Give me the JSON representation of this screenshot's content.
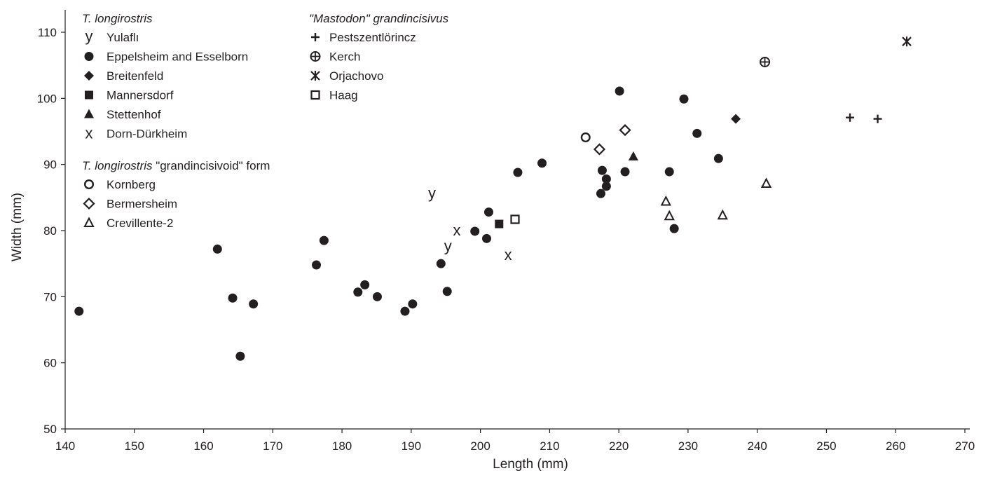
{
  "chart_data": {
    "type": "scatter",
    "title": "",
    "xlabel": "Length (mm)",
    "ylabel": "Width (mm)",
    "xlim": [
      140,
      270
    ],
    "ylim": [
      50,
      110
    ],
    "x_ticks": [
      "140",
      "150",
      "160",
      "170",
      "180",
      "190",
      "200",
      "210",
      "220",
      "230",
      "240",
      "250",
      "260",
      "270"
    ],
    "y_ticks": [
      "50",
      "60",
      "70",
      "80",
      "90",
      "100",
      "110"
    ],
    "grid": false,
    "legend_placement": "top-left",
    "legend_groups": [
      {
        "heading_italic": "T. longirostris",
        "heading_rest": "",
        "entries": [
          {
            "label": "Yulaflı",
            "marker": "y-letter"
          },
          {
            "label": "Eppelsheim and Esselborn",
            "marker": "filled-circle"
          },
          {
            "label": "Breitenfeld",
            "marker": "filled-diamond"
          },
          {
            "label": "Mannersdorf",
            "marker": "filled-square"
          },
          {
            "label": "Stettenhof",
            "marker": "filled-triangle"
          },
          {
            "label": "Dorn-Dürkheim",
            "marker": "x-letter"
          }
        ]
      },
      {
        "heading_italic": "T. longirostris",
        "heading_rest": " \"grandincisivoid\" form",
        "entries": [
          {
            "label": "Kornberg",
            "marker": "open-circle"
          },
          {
            "label": "Bermersheim",
            "marker": "open-diamond"
          },
          {
            "label": "Crevillente-2",
            "marker": "open-triangle"
          }
        ]
      },
      {
        "heading_italic": "\"Mastodon\" grandincisivus",
        "heading_rest": "",
        "entries": [
          {
            "label": "Pestszentlörincz",
            "marker": "plus"
          },
          {
            "label": "Kerch",
            "marker": "circle-plus"
          },
          {
            "label": "Orjachovo",
            "marker": "asterisk"
          },
          {
            "label": "Haag",
            "marker": "open-square"
          }
        ]
      }
    ],
    "series": [
      {
        "name": "Yulaflı",
        "marker": "y-letter",
        "points": [
          [
            193.0,
            85.5
          ],
          [
            195.3,
            77.5
          ]
        ]
      },
      {
        "name": "Eppelsheim and Esselborn",
        "marker": "filled-circle",
        "points": [
          [
            142.0,
            67.8
          ],
          [
            162.0,
            77.2
          ],
          [
            164.2,
            69.8
          ],
          [
            165.3,
            61.0
          ],
          [
            167.2,
            68.9
          ],
          [
            176.3,
            74.8
          ],
          [
            177.4,
            78.5
          ],
          [
            182.3,
            70.7
          ],
          [
            183.3,
            71.8
          ],
          [
            185.1,
            70.0
          ],
          [
            189.1,
            67.8
          ],
          [
            190.2,
            68.9
          ],
          [
            194.3,
            75.0
          ],
          [
            195.2,
            70.8
          ],
          [
            199.2,
            79.9
          ],
          [
            200.9,
            78.8
          ],
          [
            201.2,
            82.8
          ],
          [
            205.4,
            88.8
          ],
          [
            208.9,
            90.2
          ],
          [
            217.4,
            85.6
          ],
          [
            217.6,
            89.1
          ],
          [
            218.2,
            87.8
          ],
          [
            218.2,
            86.7
          ],
          [
            220.1,
            101.1
          ],
          [
            220.9,
            88.9
          ],
          [
            227.3,
            88.9
          ],
          [
            228.0,
            80.3
          ],
          [
            229.4,
            99.9
          ],
          [
            231.3,
            94.7
          ],
          [
            234.4,
            90.9
          ]
        ]
      },
      {
        "name": "Breitenfeld",
        "marker": "filled-diamond",
        "points": [
          [
            236.9,
            96.9
          ]
        ]
      },
      {
        "name": "Mannersdorf",
        "marker": "filled-square",
        "points": [
          [
            202.7,
            81.0
          ]
        ]
      },
      {
        "name": "Stettenhof",
        "marker": "filled-triangle",
        "points": [
          [
            222.1,
            91.2
          ]
        ]
      },
      {
        "name": "Dorn-Dürkheim",
        "marker": "x-letter",
        "points": [
          [
            196.6,
            80.0
          ],
          [
            204.0,
            76.3
          ]
        ]
      },
      {
        "name": "Kornberg",
        "marker": "open-circle",
        "points": [
          [
            215.2,
            94.1
          ]
        ]
      },
      {
        "name": "Bermersheim",
        "marker": "open-diamond",
        "points": [
          [
            217.2,
            92.3
          ],
          [
            220.9,
            95.2
          ]
        ]
      },
      {
        "name": "Crevillente-2",
        "marker": "open-triangle",
        "points": [
          [
            226.8,
            84.4
          ],
          [
            227.3,
            82.2
          ],
          [
            235.0,
            82.3
          ],
          [
            241.3,
            87.1
          ]
        ]
      },
      {
        "name": "Pestszentlörincz",
        "marker": "plus",
        "points": [
          [
            253.4,
            97.1
          ],
          [
            257.4,
            96.9
          ]
        ]
      },
      {
        "name": "Kerch",
        "marker": "circle-plus",
        "points": [
          [
            241.1,
            105.5
          ]
        ]
      },
      {
        "name": "Orjachovo",
        "marker": "asterisk",
        "points": [
          [
            261.6,
            108.6
          ]
        ]
      },
      {
        "name": "Haag",
        "marker": "open-square",
        "points": [
          [
            205.0,
            81.7
          ]
        ]
      }
    ]
  }
}
